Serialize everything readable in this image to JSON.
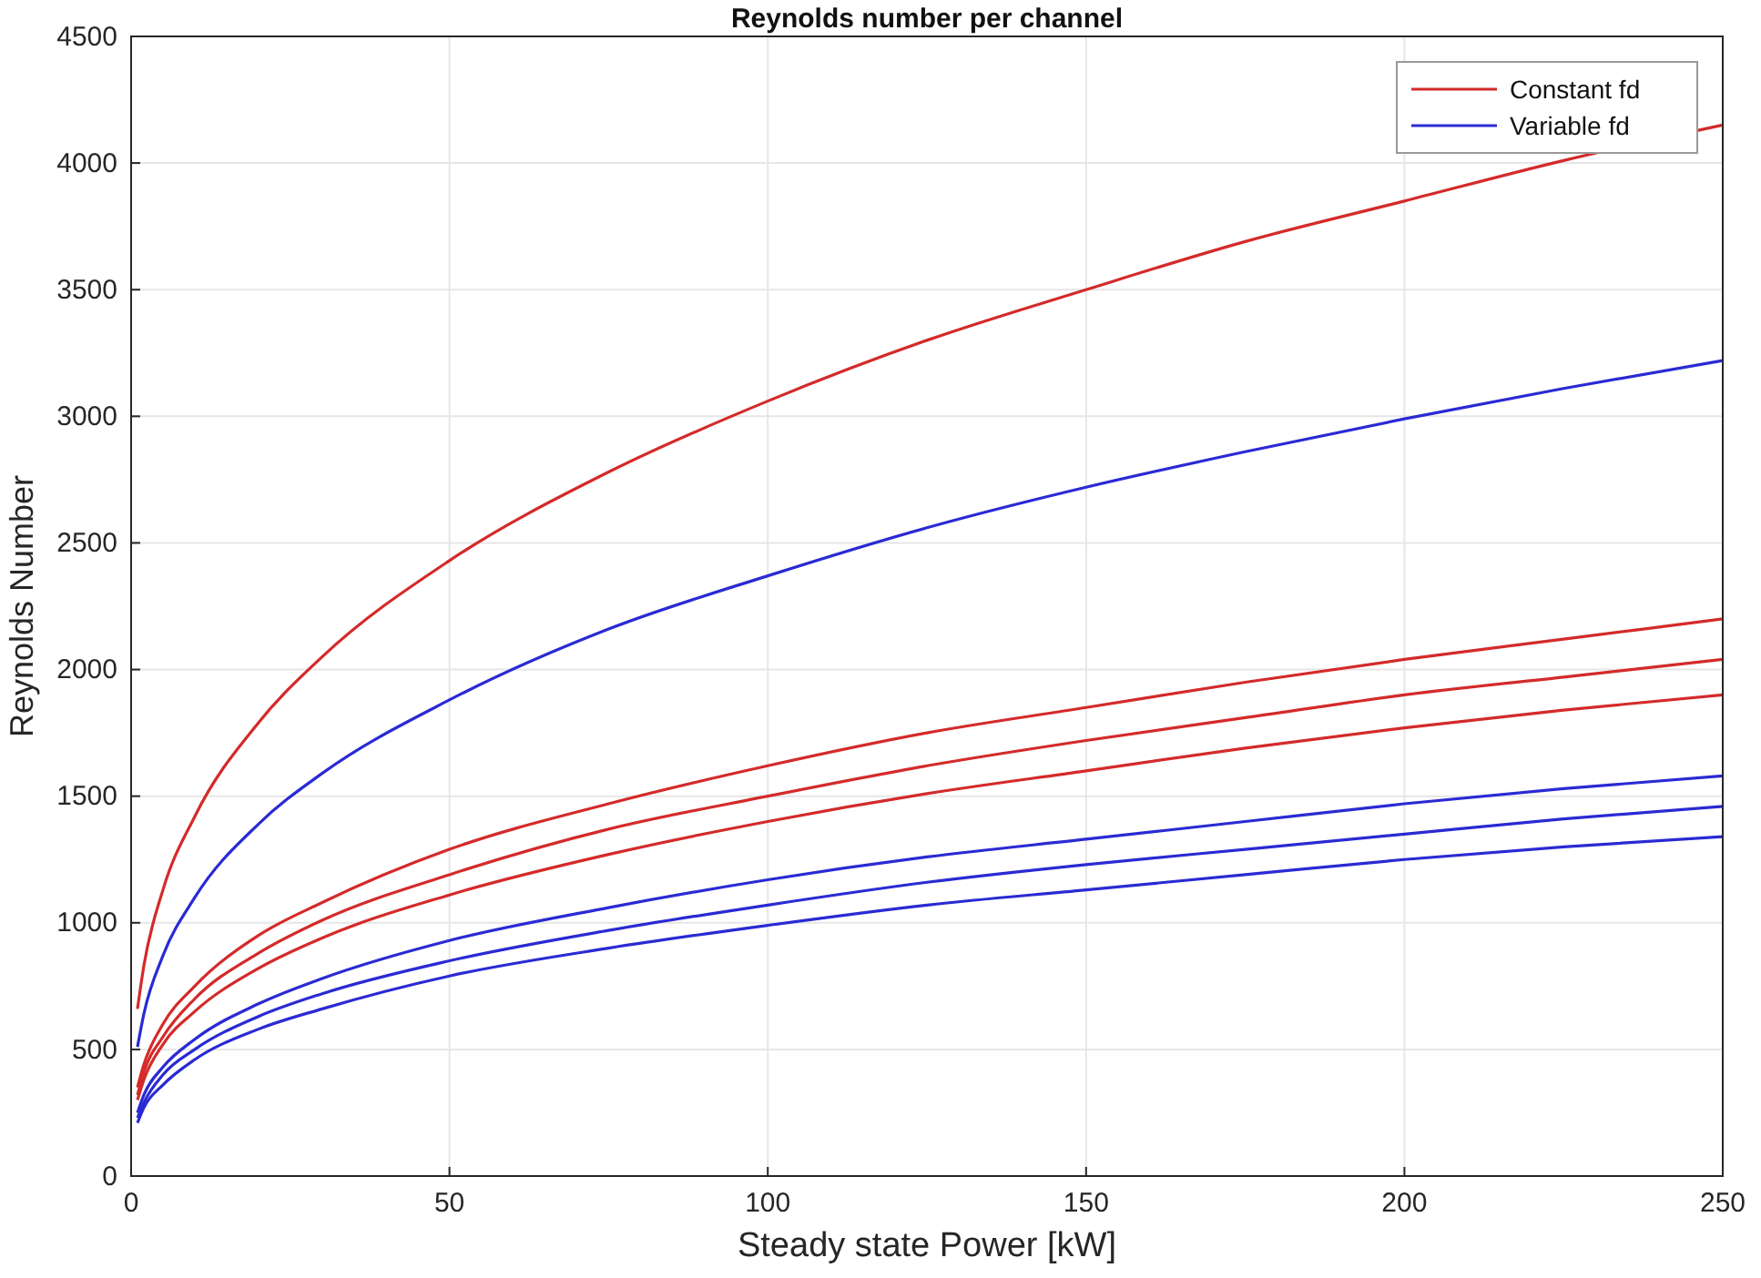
{
  "chart_data": {
    "type": "line",
    "title": "Reynolds number per channel",
    "xlabel": "Steady state Power [kW]",
    "ylabel": "Reynolds Number",
    "x": [
      1,
      2,
      5,
      10,
      20,
      30,
      50,
      75,
      100,
      125,
      150,
      175,
      200,
      225,
      250
    ],
    "xlim": [
      0,
      250
    ],
    "xticks": [
      0,
      50,
      100,
      150,
      200,
      250
    ],
    "ylim": [
      0,
      4500
    ],
    "yticks": [
      0,
      500,
      1000,
      1500,
      2000,
      2500,
      3000,
      3500,
      4000,
      4500
    ],
    "grid": true,
    "legend": "top right",
    "marker": "none",
    "line_style": "solid",
    "series": [
      {
        "name": "Constant fd",
        "color": "#d42a2a",
        "values": [
          660,
          830,
          1130,
          1420,
          1790,
          2050,
          2430,
          2780,
          3060,
          3300,
          3500,
          3690,
          3850,
          4010,
          4150
        ]
      },
      {
        "name": "Variable fd",
        "color": "#2a2ad4",
        "values": [
          510,
          640,
          870,
          1100,
          1390,
          1590,
          1880,
          2160,
          2370,
          2560,
          2720,
          2860,
          2990,
          3110,
          3220
        ]
      },
      {
        "color": "#d42a2a",
        "values": [
          350,
          440,
          600,
          750,
          950,
          1080,
          1290,
          1470,
          1620,
          1750,
          1850,
          1950,
          2040,
          2120,
          2200
        ]
      },
      {
        "color": "#d42a2a",
        "values": [
          320,
          410,
          550,
          700,
          880,
          1010,
          1190,
          1370,
          1500,
          1620,
          1720,
          1810,
          1900,
          1970,
          2040
        ]
      },
      {
        "color": "#d42a2a",
        "values": [
          300,
          380,
          520,
          650,
          820,
          940,
          1110,
          1270,
          1400,
          1510,
          1600,
          1690,
          1770,
          1840,
          1900
        ]
      },
      {
        "color": "#2a2ad4",
        "values": [
          250,
          320,
          430,
          540,
          680,
          780,
          930,
          1060,
          1170,
          1260,
          1330,
          1400,
          1470,
          1530,
          1580
        ]
      },
      {
        "color": "#2a2ad4",
        "values": [
          230,
          290,
          400,
          500,
          630,
          720,
          850,
          970,
          1070,
          1160,
          1230,
          1290,
          1350,
          1410,
          1460
        ]
      },
      {
        "color": "#2a2ad4",
        "values": [
          210,
          270,
          360,
          460,
          580,
          660,
          790,
          900,
          990,
          1070,
          1130,
          1190,
          1250,
          1300,
          1340
        ]
      }
    ]
  }
}
